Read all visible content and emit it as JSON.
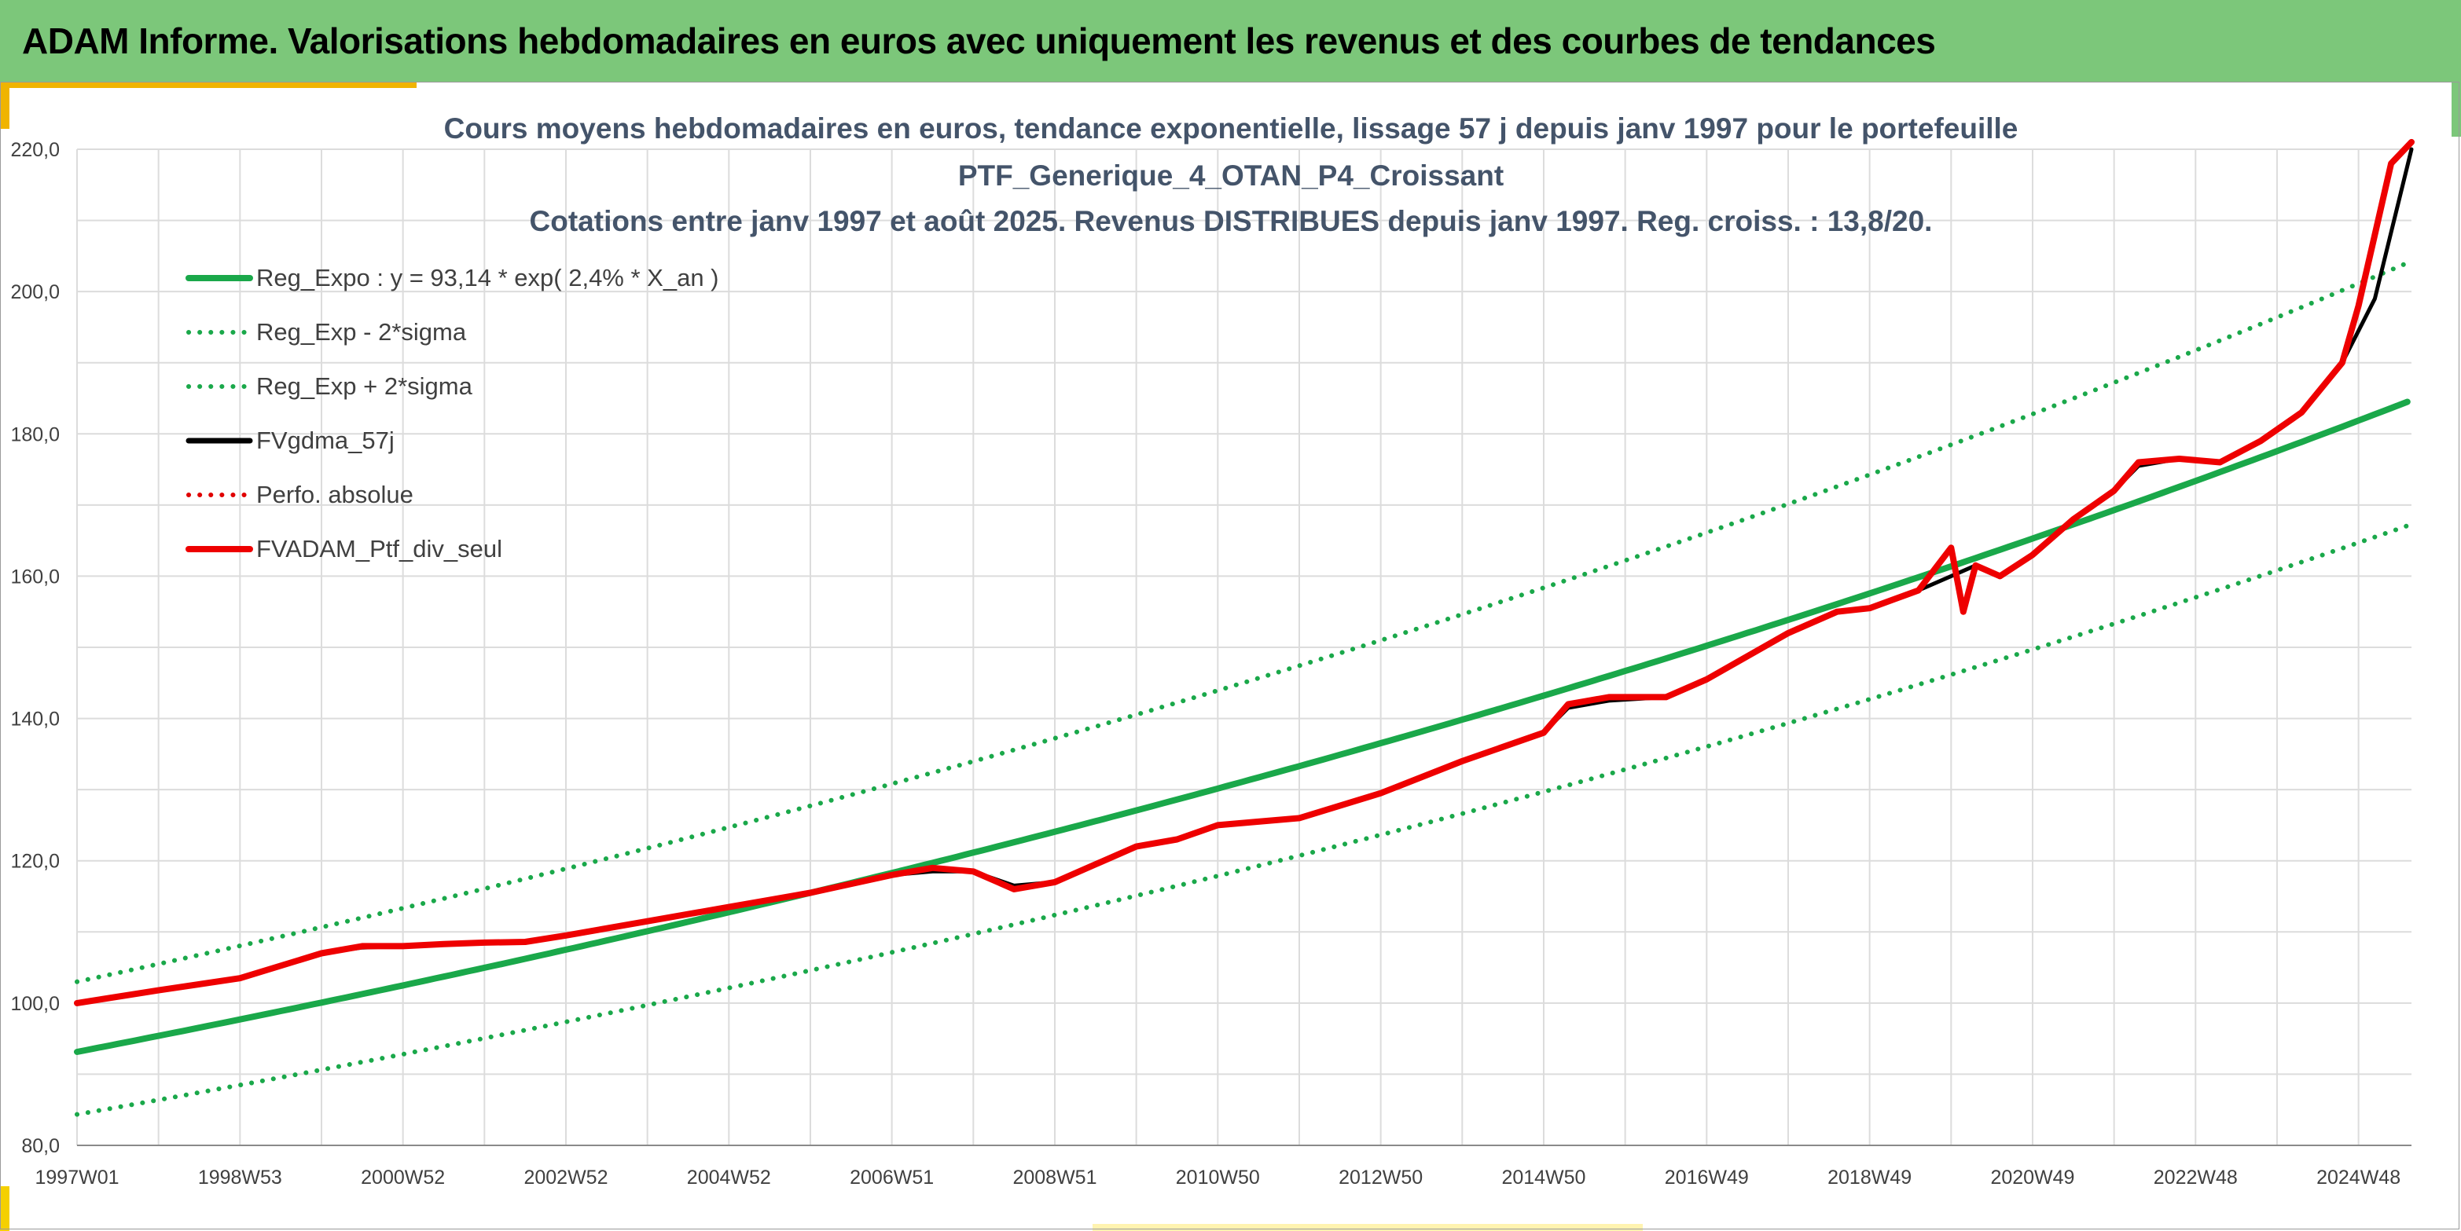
{
  "header": {
    "title": "ADAM Informe. Valorisations hebdomadaires en euros avec uniquement les revenus et des courbes de tendances"
  },
  "colors": {
    "header_bg": "#7cc77a",
    "accent": "#f0b400",
    "regression": "#1aa84a",
    "smoothed": "#000000",
    "perf_abs": "#e00000",
    "portfolio": "#ee0000"
  },
  "chart_data": {
    "type": "line",
    "title": [
      "Cours moyens hebdomadaires en euros, tendance exponentielle, lissage 57 j depuis janv 1997 pour le portefeuille",
      "PTF_Generique_4_OTAN_P4_Croissant",
      "Cotations entre janv 1997 et août 2025. Revenus DISTRIBUES depuis janv 1997. Reg. croiss. : 13,8/20."
    ],
    "xlabel": "",
    "ylabel": "",
    "ylim": [
      80,
      220
    ],
    "yticks": [
      "80,0",
      "100,0",
      "120,0",
      "140,0",
      "160,0",
      "180,0",
      "200,0",
      "220,0"
    ],
    "xticks": [
      "1997W01",
      "1998W53",
      "2000W52",
      "2002W52",
      "2004W52",
      "2006W51",
      "2008W51",
      "2010W50",
      "2012W50",
      "2014W50",
      "2016W49",
      "2018W49",
      "2020W49",
      "2022W48",
      "2024W48"
    ],
    "xrange_years": [
      1997.0,
      2025.65
    ],
    "grid": "vertical and horizontal",
    "legend_position": "top-left",
    "series": [
      {
        "name": "Reg_Expo : y = 93,14 * exp( 2,4% *  X_an )",
        "kind": "exp",
        "a": 93.14,
        "rate": 0.0239,
        "color": "#1aa84a",
        "style": "solid"
      },
      {
        "name": "Reg_Exp - 2*sigma",
        "kind": "exp",
        "a": 84.35,
        "rate": 0.0239,
        "color": "#1aa84a",
        "style": "dotted"
      },
      {
        "name": "Reg_Exp + 2*sigma",
        "kind": "exp",
        "a": 103.0,
        "rate": 0.0239,
        "color": "#1aa84a",
        "style": "dotted"
      },
      {
        "name": "FVgdma_57j",
        "kind": "points",
        "color": "#000000",
        "style": "solid",
        "x": [
          1997.0,
          1998.0,
          1999.0,
          2000.0,
          2000.5,
          2001.0,
          2001.5,
          2002.0,
          2002.5,
          2003.0,
          2004.0,
          2005.0,
          2006.0,
          2007.0,
          2007.5,
          2008.0,
          2008.5,
          2009.0,
          2010.0,
          2010.5,
          2011.0,
          2011.5,
          2012.0,
          2013.0,
          2014.0,
          2015.0,
          2015.3,
          2015.8,
          2016.5,
          2017.0,
          2018.0,
          2018.6,
          2019.0,
          2019.6,
          2020.0,
          2020.3,
          2020.6,
          2021.0,
          2021.5,
          2022.0,
          2022.3,
          2022.8,
          2023.3,
          2023.8,
          2024.3,
          2024.8,
          2025.2,
          2025.65
        ],
        "y": [
          100.0,
          101.8,
          103.5,
          107.0,
          107.8,
          108.0,
          108.3,
          108.5,
          108.6,
          109.5,
          111.5,
          113.5,
          115.5,
          118.0,
          118.5,
          118.5,
          116.5,
          117.0,
          122.0,
          123.0,
          125.0,
          125.5,
          126.0,
          129.5,
          134.0,
          138.0,
          141.5,
          142.5,
          143.0,
          145.5,
          152.0,
          155.0,
          155.5,
          158.0,
          160.0,
          161.5,
          160.0,
          163.0,
          168.0,
          172.0,
          175.5,
          176.5,
          176.0,
          179.0,
          183.0,
          190.0,
          199.0,
          220.0
        ]
      },
      {
        "name": "Perfo. absolue",
        "kind": "legend-only",
        "color": "#e00000",
        "style": "dotted"
      },
      {
        "name": "FVADAM_Ptf_div_seul",
        "kind": "points",
        "color": "#ee0000",
        "style": "solid",
        "x": [
          1997.0,
          1998.0,
          1999.0,
          2000.0,
          2000.5,
          2001.0,
          2001.5,
          2002.0,
          2002.5,
          2003.0,
          2004.0,
          2005.0,
          2006.0,
          2007.0,
          2007.5,
          2008.0,
          2008.5,
          2009.0,
          2010.0,
          2010.5,
          2011.0,
          2011.5,
          2012.0,
          2013.0,
          2014.0,
          2015.0,
          2015.3,
          2015.8,
          2016.5,
          2017.0,
          2018.0,
          2018.6,
          2019.0,
          2019.6,
          2020.0,
          2020.15,
          2020.3,
          2020.6,
          2021.0,
          2021.5,
          2022.0,
          2022.3,
          2022.8,
          2023.3,
          2023.8,
          2024.3,
          2024.8,
          2025.0,
          2025.2,
          2025.4,
          2025.65
        ],
        "y": [
          100.0,
          101.8,
          103.5,
          107.0,
          108.0,
          108.0,
          108.3,
          108.5,
          108.6,
          109.5,
          111.5,
          113.5,
          115.5,
          118.0,
          119.0,
          118.5,
          116.0,
          117.0,
          122.0,
          123.0,
          125.0,
          125.5,
          126.0,
          129.5,
          134.0,
          138.0,
          142.0,
          143.0,
          143.0,
          145.5,
          152.0,
          155.0,
          155.5,
          158.0,
          164.0,
          155.0,
          161.5,
          160.0,
          163.0,
          168.0,
          172.0,
          176.0,
          176.5,
          176.0,
          179.0,
          183.0,
          190.0,
          198.0,
          208.0,
          218.0,
          221.0
        ]
      }
    ]
  }
}
